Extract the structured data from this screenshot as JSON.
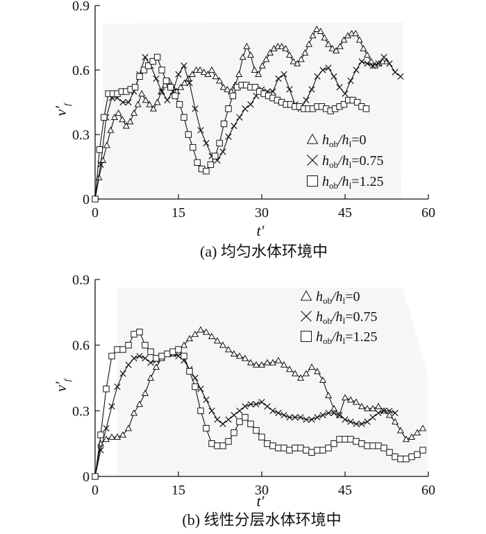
{
  "chart_data": [
    {
      "type": "line",
      "caption": "(a) 均匀水体环境中",
      "xlabel": "t′",
      "ylabel_main": "v′",
      "ylabel_sub": "f",
      "xlim": [
        0,
        60
      ],
      "ylim": [
        0,
        0.9
      ],
      "xticks": [
        "0",
        "15",
        "30",
        "45",
        "60"
      ],
      "yticks": [
        "0",
        "0.3",
        "0.6",
        "0.9"
      ],
      "legend_position": "middle-right",
      "series": [
        {
          "name": "h_ob/h_l=0",
          "legend": {
            "a": "h",
            "b": "ob",
            "c": "/h",
            "d": "l",
            "e": "=0"
          },
          "marker": "triangle",
          "x": [
            0,
            0.7,
            1.4,
            2.1,
            2.8,
            3.5,
            4.2,
            4.9,
            5.6,
            6.3,
            7.0,
            7.7,
            8.4,
            9.1,
            9.8,
            10.5,
            11.2,
            11.9,
            12.6,
            13.3,
            14.0,
            14.7,
            15.4,
            16.1,
            16.8,
            17.5,
            18.2,
            18.9,
            19.6,
            20.3,
            21.0,
            21.7,
            22.4,
            23.1,
            23.8,
            24.5,
            25.2,
            25.9,
            26.6,
            27.3,
            28.0,
            28.7,
            29.4,
            30.1,
            30.8,
            31.5,
            32.2,
            32.9,
            33.6,
            34.3,
            35.0,
            35.7,
            36.4,
            37.1,
            37.8,
            38.5,
            39.2,
            39.9,
            40.6,
            41.3,
            42.0,
            42.7,
            43.4,
            44.1,
            44.8,
            45.5,
            46.2,
            46.9,
            47.6,
            48.3,
            49.0,
            49.7,
            50.4,
            51.1,
            51.8,
            52.5
          ],
          "y": [
            0.0,
            0.1,
            0.18,
            0.25,
            0.32,
            0.38,
            0.4,
            0.37,
            0.34,
            0.36,
            0.4,
            0.44,
            0.49,
            0.46,
            0.44,
            0.42,
            0.45,
            0.5,
            0.53,
            0.55,
            0.52,
            0.5,
            0.52,
            0.54,
            0.56,
            0.58,
            0.6,
            0.6,
            0.59,
            0.58,
            0.6,
            0.57,
            0.55,
            0.52,
            0.51,
            0.5,
            0.53,
            0.58,
            0.66,
            0.71,
            0.67,
            0.6,
            0.58,
            0.62,
            0.65,
            0.68,
            0.7,
            0.71,
            0.71,
            0.7,
            0.67,
            0.64,
            0.63,
            0.65,
            0.68,
            0.72,
            0.76,
            0.79,
            0.78,
            0.75,
            0.72,
            0.7,
            0.69,
            0.71,
            0.74,
            0.76,
            0.77,
            0.77,
            0.74,
            0.7,
            0.67,
            0.64,
            0.62,
            0.63,
            0.64,
            0.64
          ]
        },
        {
          "name": "h_ob/h_l=0.75",
          "legend": {
            "a": "h",
            "b": "ob",
            "c": "/h",
            "d": "l",
            "e": "=0.75"
          },
          "marker": "cross",
          "x": [
            0,
            1,
            2,
            3,
            4,
            5,
            6,
            7,
            8,
            9,
            10,
            11,
            12,
            13,
            14,
            15,
            16,
            17,
            18,
            19,
            20,
            21,
            22,
            23,
            24,
            25,
            26,
            27,
            28,
            29,
            30,
            31,
            32,
            33,
            34,
            35,
            36,
            37,
            38,
            39,
            40,
            41,
            42,
            43,
            44,
            45,
            46,
            47,
            48,
            49,
            50,
            51,
            52,
            53,
            54,
            55
          ],
          "y": [
            0.0,
            0.16,
            0.38,
            0.47,
            0.47,
            0.45,
            0.45,
            0.5,
            0.58,
            0.66,
            0.62,
            0.56,
            0.5,
            0.46,
            0.5,
            0.58,
            0.62,
            0.54,
            0.42,
            0.32,
            0.26,
            0.2,
            0.18,
            0.22,
            0.29,
            0.34,
            0.38,
            0.42,
            0.44,
            0.48,
            0.51,
            0.5,
            0.5,
            0.56,
            0.58,
            0.51,
            0.44,
            0.42,
            0.46,
            0.51,
            0.57,
            0.6,
            0.61,
            0.57,
            0.52,
            0.49,
            0.55,
            0.6,
            0.64,
            0.63,
            0.62,
            0.63,
            0.66,
            0.63,
            0.59,
            0.57
          ]
        },
        {
          "name": "h_ob/h_l=1.25",
          "legend": {
            "a": "h",
            "b": "ob",
            "c": "/h",
            "d": "l",
            "e": "=1.25"
          },
          "marker": "square",
          "x": [
            0,
            0.8,
            1.6,
            2.4,
            3.2,
            4.0,
            4.8,
            5.6,
            6.4,
            7.2,
            8.0,
            8.8,
            9.6,
            10.4,
            11.2,
            12.0,
            12.8,
            13.6,
            14.4,
            15.2,
            16.0,
            16.8,
            17.6,
            18.4,
            19.2,
            20.0,
            20.8,
            21.6,
            22.4,
            23.2,
            24.0,
            24.8,
            25.6,
            26.4,
            27.2,
            28.0,
            28.8,
            29.6,
            30.4,
            31.2,
            32.0,
            32.8,
            33.6,
            34.4,
            35.2,
            36.0,
            36.8,
            37.6,
            38.4,
            39.2,
            40.0,
            40.8,
            41.6,
            42.4,
            43.2,
            44.0,
            44.8,
            45.6,
            46.4,
            47.2,
            48.0,
            48.8
          ],
          "y": [
            0.0,
            0.23,
            0.38,
            0.49,
            0.49,
            0.49,
            0.5,
            0.5,
            0.51,
            0.52,
            0.57,
            0.6,
            0.62,
            0.64,
            0.66,
            0.6,
            0.55,
            0.52,
            0.48,
            0.44,
            0.38,
            0.3,
            0.24,
            0.17,
            0.14,
            0.13,
            0.16,
            0.2,
            0.26,
            0.35,
            0.42,
            0.48,
            0.52,
            0.53,
            0.53,
            0.52,
            0.52,
            0.5,
            0.49,
            0.48,
            0.47,
            0.46,
            0.45,
            0.44,
            0.44,
            0.43,
            0.43,
            0.42,
            0.42,
            0.42,
            0.43,
            0.43,
            0.42,
            0.41,
            0.42,
            0.43,
            0.44,
            0.46,
            0.46,
            0.45,
            0.43,
            0.42
          ]
        }
      ]
    },
    {
      "type": "line",
      "caption": "(b) 线性分层水体环境中",
      "xlabel": "t′",
      "ylabel_main": "v′",
      "ylabel_sub": "f",
      "xlim": [
        0,
        60
      ],
      "ylim": [
        0,
        0.9
      ],
      "xticks": [
        "0",
        "15",
        "30",
        "45",
        "60"
      ],
      "yticks": [
        "0",
        "0.3",
        "0.6",
        "0.9"
      ],
      "legend_position": "top-right",
      "series": [
        {
          "name": "h_ob/h_l=0",
          "legend": {
            "a": "h",
            "b": "ob",
            "c": "/h",
            "d": "l",
            "e": "=0"
          },
          "marker": "triangle",
          "x": [
            0,
            1,
            2,
            3,
            4,
            5,
            6,
            7,
            8,
            9,
            10,
            11,
            12,
            13,
            14,
            15,
            16,
            17,
            18,
            19,
            20,
            21,
            22,
            23,
            24,
            25,
            26,
            27,
            28,
            29,
            30,
            31,
            32,
            33,
            34,
            35,
            36,
            37,
            38,
            39,
            40,
            41,
            42,
            43,
            44,
            45,
            46,
            47,
            48,
            49,
            50,
            51,
            52,
            53,
            54,
            55,
            56,
            57,
            58,
            59
          ],
          "y": [
            0.0,
            0.15,
            0.17,
            0.18,
            0.18,
            0.19,
            0.22,
            0.29,
            0.33,
            0.38,
            0.45,
            0.5,
            0.54,
            0.56,
            0.56,
            0.57,
            0.6,
            0.63,
            0.65,
            0.67,
            0.66,
            0.64,
            0.62,
            0.6,
            0.58,
            0.56,
            0.55,
            0.54,
            0.52,
            0.51,
            0.51,
            0.52,
            0.52,
            0.53,
            0.51,
            0.49,
            0.47,
            0.45,
            0.47,
            0.5,
            0.48,
            0.44,
            0.37,
            0.31,
            0.28,
            0.36,
            0.35,
            0.34,
            0.32,
            0.31,
            0.31,
            0.32,
            0.3,
            0.28,
            0.25,
            0.21,
            0.17,
            0.18,
            0.2,
            0.22
          ]
        },
        {
          "name": "h_ob/h_l=0.75",
          "legend": {
            "a": "h",
            "b": "ob",
            "c": "/h",
            "d": "l",
            "e": "=0.75"
          },
          "marker": "cross",
          "x": [
            0,
            1,
            2,
            3,
            4,
            5,
            6,
            7,
            8,
            9,
            10,
            11,
            12,
            13,
            14,
            15,
            16,
            17,
            18,
            19,
            20,
            21,
            22,
            23,
            24,
            25,
            26,
            27,
            28,
            29,
            30,
            31,
            32,
            33,
            34,
            35,
            36,
            37,
            38,
            39,
            40,
            41,
            42,
            43,
            44,
            45,
            46,
            47,
            48,
            49,
            50,
            51,
            52,
            53,
            54
          ],
          "y": [
            0.0,
            0.12,
            0.22,
            0.32,
            0.41,
            0.47,
            0.51,
            0.54,
            0.55,
            0.54,
            0.52,
            0.53,
            0.55,
            0.56,
            0.56,
            0.55,
            0.53,
            0.49,
            0.45,
            0.4,
            0.35,
            0.3,
            0.26,
            0.24,
            0.26,
            0.28,
            0.3,
            0.32,
            0.33,
            0.33,
            0.34,
            0.32,
            0.3,
            0.29,
            0.28,
            0.27,
            0.27,
            0.27,
            0.26,
            0.26,
            0.27,
            0.28,
            0.29,
            0.29,
            0.28,
            0.26,
            0.25,
            0.24,
            0.24,
            0.25,
            0.27,
            0.29,
            0.3,
            0.3,
            0.29
          ]
        },
        {
          "name": "h_ob/h_l=1.25",
          "legend": {
            "a": "h",
            "b": "ob",
            "c": "/h",
            "d": "l",
            "e": "=1.25"
          },
          "marker": "square",
          "x": [
            0,
            1,
            2,
            3,
            4,
            5,
            6,
            7,
            8,
            9,
            10,
            11,
            12,
            13,
            14,
            15,
            16,
            17,
            18,
            19,
            20,
            21,
            22,
            23,
            24,
            25,
            26,
            27,
            28,
            29,
            30,
            31,
            32,
            33,
            34,
            35,
            36,
            37,
            38,
            39,
            40,
            41,
            42,
            43,
            44,
            45,
            46,
            47,
            48,
            49,
            50,
            51,
            52,
            53,
            54,
            55,
            56,
            57,
            58,
            59
          ],
          "y": [
            0.0,
            0.19,
            0.4,
            0.55,
            0.58,
            0.58,
            0.6,
            0.65,
            0.66,
            0.6,
            0.57,
            0.54,
            0.55,
            0.56,
            0.57,
            0.58,
            0.55,
            0.48,
            0.41,
            0.3,
            0.22,
            0.15,
            0.14,
            0.14,
            0.16,
            0.2,
            0.25,
            0.27,
            0.24,
            0.21,
            0.18,
            0.15,
            0.14,
            0.13,
            0.13,
            0.12,
            0.13,
            0.13,
            0.12,
            0.11,
            0.12,
            0.12,
            0.13,
            0.15,
            0.17,
            0.17,
            0.17,
            0.16,
            0.15,
            0.14,
            0.14,
            0.14,
            0.13,
            0.11,
            0.09,
            0.08,
            0.08,
            0.09,
            0.1,
            0.12
          ]
        }
      ]
    }
  ]
}
